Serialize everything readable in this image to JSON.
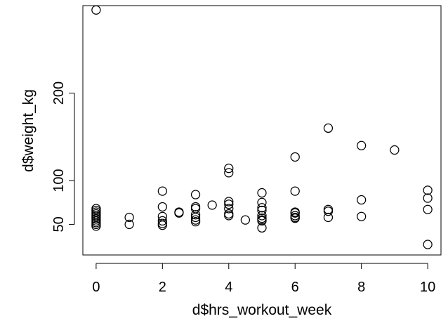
{
  "chart_data": {
    "type": "scatter",
    "title": "",
    "xlabel": "d$hrs_workout_week",
    "ylabel": "d$weight_kg",
    "xlim": [
      -0.4,
      10.4
    ],
    "ylim": [
      15,
      300
    ],
    "xticks": [
      0,
      2,
      4,
      6,
      8,
      10
    ],
    "yticks": [
      50,
      100,
      200
    ],
    "ytick_labels": [
      "50",
      "100",
      "200"
    ],
    "box": true,
    "grid": false,
    "marker": "open-circle",
    "points": [
      {
        "x": 0,
        "y": 295
      },
      {
        "x": 0,
        "y": 68
      },
      {
        "x": 0,
        "y": 66
      },
      {
        "x": 0,
        "y": 64
      },
      {
        "x": 0,
        "y": 62
      },
      {
        "x": 0,
        "y": 60
      },
      {
        "x": 0,
        "y": 58
      },
      {
        "x": 0,
        "y": 56
      },
      {
        "x": 0,
        "y": 54
      },
      {
        "x": 0,
        "y": 52
      },
      {
        "x": 0,
        "y": 50
      },
      {
        "x": 0,
        "y": 48
      },
      {
        "x": 1,
        "y": 58
      },
      {
        "x": 1,
        "y": 50
      },
      {
        "x": 2,
        "y": 88
      },
      {
        "x": 2,
        "y": 70
      },
      {
        "x": 2,
        "y": 59
      },
      {
        "x": 2,
        "y": 54
      },
      {
        "x": 2,
        "y": 51
      },
      {
        "x": 2,
        "y": 49
      },
      {
        "x": 2.5,
        "y": 64
      },
      {
        "x": 2.5,
        "y": 63
      },
      {
        "x": 3,
        "y": 84
      },
      {
        "x": 3,
        "y": 70
      },
      {
        "x": 3,
        "y": 68
      },
      {
        "x": 3,
        "y": 61
      },
      {
        "x": 3,
        "y": 58
      },
      {
        "x": 3,
        "y": 55
      },
      {
        "x": 3,
        "y": 53
      },
      {
        "x": 3.5,
        "y": 72
      },
      {
        "x": 4,
        "y": 114
      },
      {
        "x": 4,
        "y": 109
      },
      {
        "x": 4,
        "y": 76
      },
      {
        "x": 4,
        "y": 73
      },
      {
        "x": 4,
        "y": 68
      },
      {
        "x": 4,
        "y": 62
      },
      {
        "x": 4,
        "y": 60
      },
      {
        "x": 4.5,
        "y": 55
      },
      {
        "x": 5,
        "y": 86
      },
      {
        "x": 5,
        "y": 75
      },
      {
        "x": 5,
        "y": 69
      },
      {
        "x": 5,
        "y": 66
      },
      {
        "x": 5,
        "y": 60
      },
      {
        "x": 5,
        "y": 57
      },
      {
        "x": 5,
        "y": 55
      },
      {
        "x": 5,
        "y": 54
      },
      {
        "x": 5,
        "y": 46
      },
      {
        "x": 6,
        "y": 127
      },
      {
        "x": 6,
        "y": 88
      },
      {
        "x": 6,
        "y": 64
      },
      {
        "x": 6,
        "y": 63
      },
      {
        "x": 6,
        "y": 60
      },
      {
        "x": 6,
        "y": 58
      },
      {
        "x": 6,
        "y": 57
      },
      {
        "x": 7,
        "y": 160
      },
      {
        "x": 7,
        "y": 67
      },
      {
        "x": 7,
        "y": 65
      },
      {
        "x": 7,
        "y": 58
      },
      {
        "x": 8,
        "y": 140
      },
      {
        "x": 8,
        "y": 78
      },
      {
        "x": 8,
        "y": 59
      },
      {
        "x": 9,
        "y": 135
      },
      {
        "x": 10,
        "y": 89
      },
      {
        "x": 10,
        "y": 80
      },
      {
        "x": 10,
        "y": 67
      },
      {
        "x": 10,
        "y": 27
      }
    ]
  }
}
